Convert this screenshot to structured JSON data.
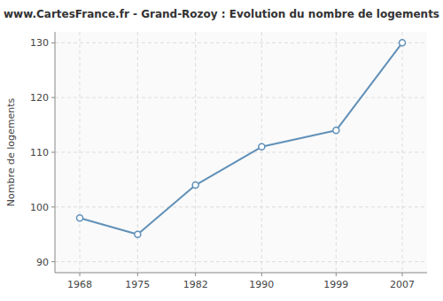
{
  "chart_data": {
    "type": "line",
    "title": "www.CartesFrance.fr - Grand-Rozoy : Evolution du nombre de logements",
    "ylabel": "Nombre de logements",
    "x": [
      1968,
      1975,
      1982,
      1990,
      1999,
      2007
    ],
    "values": [
      98,
      95,
      104,
      111,
      114,
      130
    ],
    "xlim": [
      1965,
      2010
    ],
    "xticks": [
      1968,
      1975,
      1982,
      1990,
      1999,
      2007
    ],
    "ylim": [
      88,
      132
    ],
    "yticks": [
      90,
      100,
      110,
      120,
      130
    ],
    "color": "#6090b8",
    "marker": "circle",
    "grid": true
  }
}
